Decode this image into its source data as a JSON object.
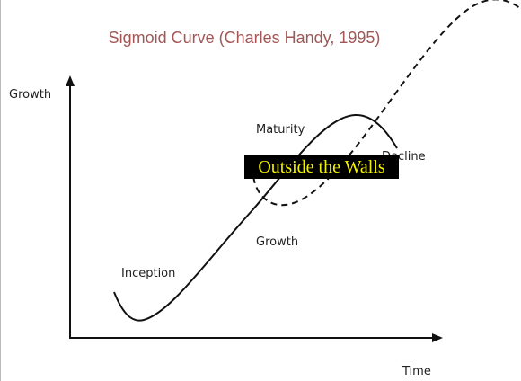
{
  "title": "Sigmoid Curve (Charles Handy, 1995)",
  "axes": {
    "y_label": "Growth",
    "x_label": "Time"
  },
  "labels": {
    "maturity": "Maturity",
    "decline": "Decline",
    "growth": "Growth",
    "inception": "Inception"
  },
  "overlay": "Outside the Walls"
}
